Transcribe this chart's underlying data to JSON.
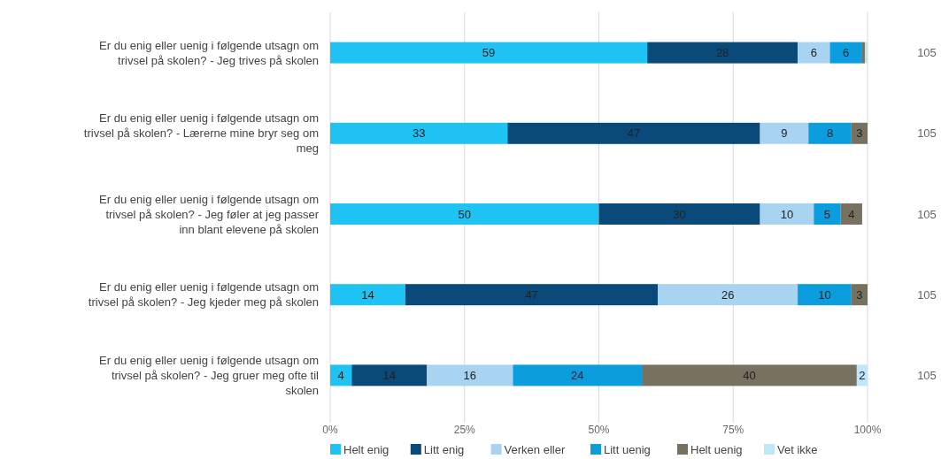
{
  "chart_data": {
    "type": "bar",
    "orientation": "horizontal",
    "stacked": true,
    "categories": [
      "Er du enig eller uenig i følgende utsagn om trivsel på skolen? - Jeg trives på skolen",
      "Er du enig eller uenig i følgende utsagn om trivsel på skolen? - Lærerne mine bryr seg om meg",
      "Er du enig eller uenig i følgende utsagn om trivsel på skolen? - Jeg føler at jeg passer inn blant elevene på skolen",
      "Er du enig eller uenig i følgende utsagn om trivsel på skolen? - Jeg kjeder meg på skolen",
      "Er du enig eller uenig i følgende utsagn om trivsel på skolen? - Jeg gruer meg ofte til skolen"
    ],
    "series": [
      {
        "name": "Helt enig",
        "color": "#1fc3f3",
        "values": [
          59,
          33,
          50,
          14,
          4
        ],
        "value_labels": [
          "59",
          "33",
          "50",
          "14",
          "4"
        ]
      },
      {
        "name": "Litt enig",
        "color": "#0a4a7a",
        "values": [
          28,
          47,
          30,
          47,
          14
        ],
        "value_labels": [
          "28",
          "47",
          "30",
          "47",
          "14"
        ]
      },
      {
        "name": "Verken eller",
        "color": "#a8d4f2",
        "values": [
          6,
          9,
          10,
          26,
          16
        ],
        "value_labels": [
          "6",
          "9",
          "10",
          "26",
          "16"
        ]
      },
      {
        "name": "Litt uenig",
        "color": "#0c9ddf",
        "values": [
          6,
          8,
          5,
          10,
          24
        ],
        "value_labels": [
          "6",
          "8",
          "5",
          "10",
          "24"
        ]
      },
      {
        "name": "Helt uenig",
        "color": "#77725f",
        "values": [
          0.5,
          3,
          4,
          3,
          40
        ],
        "value_labels": [
          null,
          "3",
          "4",
          "3",
          "40"
        ]
      },
      {
        "name": "Vet ikke",
        "color": "#bfe6f9",
        "values": [
          0.5,
          null,
          null,
          null,
          2
        ],
        "value_labels": [
          null,
          null,
          null,
          null,
          "2"
        ]
      }
    ],
    "xlim": [
      0,
      100
    ],
    "xticks": [
      {
        "value": 0,
        "label": "0%"
      },
      {
        "value": 25,
        "label": "25%"
      },
      {
        "value": 50,
        "label": "50%"
      },
      {
        "value": 75,
        "label": "75%"
      },
      {
        "value": 100,
        "label": "100%"
      }
    ],
    "grid": "x",
    "legend": "bottom",
    "annotations": [
      "105",
      "105",
      "105",
      "105",
      "105"
    ]
  }
}
